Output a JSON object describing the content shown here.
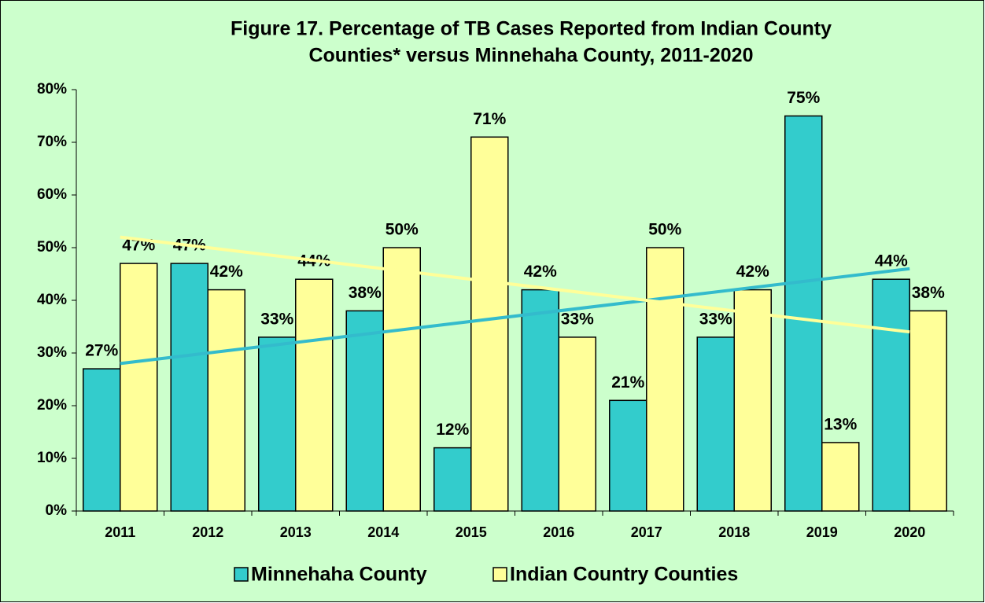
{
  "chart_data": {
    "type": "bar",
    "title": [
      "Figure 17.   Percentage of TB Cases Reported from Indian County",
      "Counties* versus Minnehaha County, 2011-2020"
    ],
    "categories": [
      "2011",
      "2012",
      "2013",
      "2014",
      "2015",
      "2016",
      "2017",
      "2018",
      "2019",
      "2020"
    ],
    "series": [
      {
        "name": "Minnehaha County",
        "color": "#33cccc",
        "trend_color": "#33bbcc",
        "values": [
          27,
          47,
          33,
          38,
          12,
          42,
          21,
          33,
          75,
          44
        ],
        "value_labels": [
          "27%",
          "47%",
          "33%",
          "38%",
          "12%",
          "42%",
          "21%",
          "33%",
          "75%",
          "44%"
        ],
        "trendline": [
          28,
          46
        ]
      },
      {
        "name": "Indian Country Counties",
        "color": "#ffff99",
        "trend_color": "#ffff99",
        "values": [
          47,
          42,
          44,
          50,
          71,
          33,
          50,
          42,
          13,
          38
        ],
        "value_labels": [
          "47%",
          "42%",
          "44%",
          "50%",
          "71%",
          "33%",
          "50%",
          "42%",
          "13%",
          "38%"
        ],
        "trendline": [
          52,
          34
        ]
      }
    ],
    "ylim": [
      0,
      80
    ],
    "yticks": [
      {
        "value": 0,
        "label": "0%"
      },
      {
        "value": 10,
        "label": "10%"
      },
      {
        "value": 20,
        "label": "20%"
      },
      {
        "value": 30,
        "label": "30%"
      },
      {
        "value": 40,
        "label": "40%"
      },
      {
        "value": 50,
        "label": "50%"
      },
      {
        "value": 60,
        "label": "60%"
      },
      {
        "value": 70,
        "label": "70%"
      },
      {
        "value": 80,
        "label": "80%"
      }
    ],
    "grid": false,
    "legend": "bottom"
  }
}
